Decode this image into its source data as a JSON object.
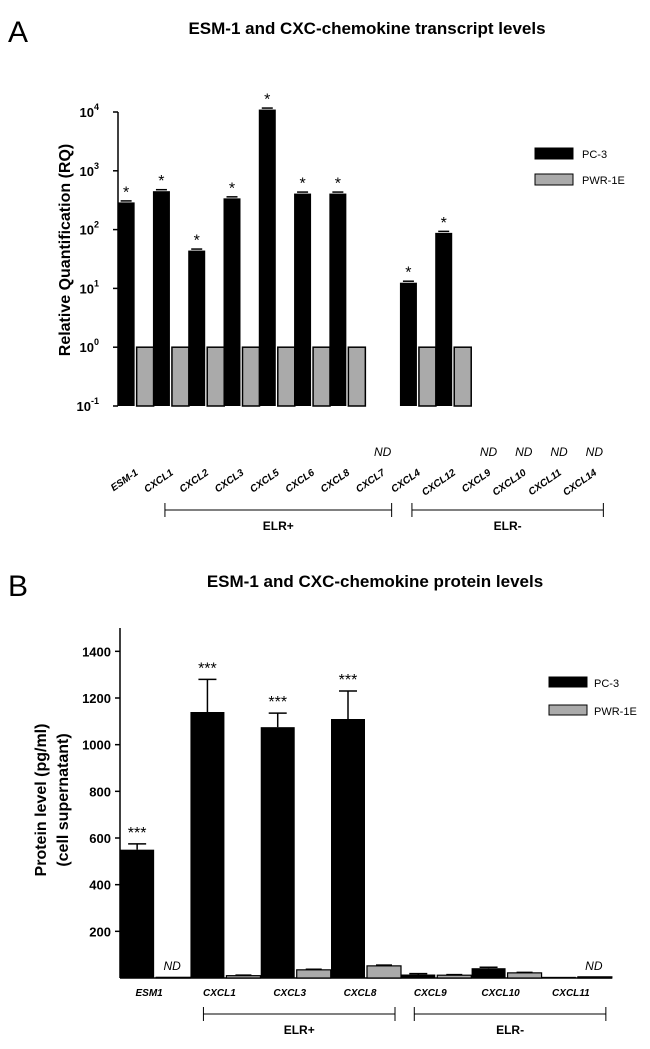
{
  "chart_data": [
    {
      "panel": "A",
      "type": "bar",
      "title": "ESM-1 and CXC-chemokine transcript levels",
      "ylabel": "Relative Quantification (RQ)",
      "yscale": "log",
      "ylim": [
        0.1,
        10000
      ],
      "y_ticks": [
        {
          "value": 0.1,
          "base": "10",
          "exp": "-1"
        },
        {
          "value": 1,
          "base": "10",
          "exp": "0"
        },
        {
          "value": 10,
          "base": "10",
          "exp": "1"
        },
        {
          "value": 100,
          "base": "10",
          "exp": "2"
        },
        {
          "value": 1000,
          "base": "10",
          "exp": "3"
        },
        {
          "value": 10000,
          "base": "10",
          "exp": "4"
        }
      ],
      "categories": [
        "ESM-1",
        "CXCL1",
        "CXCL2",
        "CXCL3",
        "CXCL5",
        "CXCL6",
        "CXCL8",
        "CXCL7",
        "CXCL4",
        "CXCL12",
        "CXCL9",
        "CXCL10",
        "CXCL11",
        "CXCL14"
      ],
      "series": [
        {
          "name": "PC-3",
          "color": "#000000",
          "values": [
            290,
            450,
            44,
            340,
            11000,
            410,
            410,
            null,
            12.5,
            88,
            null,
            null,
            null,
            null
          ]
        },
        {
          "name": "PWR-1E",
          "color": "#aaaaaa",
          "values": [
            1,
            1,
            1,
            1,
            1,
            1,
            1,
            null,
            1,
            1,
            null,
            null,
            null,
            null
          ]
        }
      ],
      "significance": [
        "*",
        "*",
        "*",
        "*",
        "*",
        "*",
        "*",
        "",
        "*",
        "*",
        "",
        "",
        "",
        ""
      ],
      "nd_label": "ND",
      "nd_categories": [
        "CXCL7",
        "CXCL9",
        "CXCL10",
        "CXCL11",
        "CXCL14"
      ],
      "groups": [
        {
          "label": "ELR+",
          "from": "CXCL1",
          "to": "CXCL7"
        },
        {
          "label": "ELR-",
          "from": "CXCL4",
          "to": "CXCL14"
        }
      ],
      "legend_position": "top-right"
    },
    {
      "panel": "B",
      "type": "bar",
      "title": "ESM-1 and  CXC-chemokine protein levels",
      "ylabel_line1": "Protein level  (pg/ml)",
      "ylabel_line2": "(cell supernatant)",
      "ylim": [
        0,
        1500
      ],
      "y_ticks": [
        200,
        400,
        600,
        800,
        1000,
        1200,
        1400
      ],
      "categories": [
        "ESM1",
        "CXCL1",
        "CXCL3",
        "CXCL8",
        "CXCL9",
        "CXCL10",
        "CXCL11"
      ],
      "series": [
        {
          "name": "PC-3",
          "color": "#000000",
          "values": [
            550,
            1140,
            1075,
            1110,
            15,
            42,
            5
          ],
          "errors": [
            25,
            140,
            60,
            120,
            4,
            4,
            0
          ]
        },
        {
          "name": "PWR-1E",
          "color": "#aaaaaa",
          "values": [
            3,
            10,
            35,
            52,
            12,
            22,
            5
          ],
          "errors": [
            0,
            3,
            3,
            4,
            3,
            3,
            0
          ]
        }
      ],
      "significance": [
        "***",
        "***",
        "***",
        "***",
        "",
        "",
        ""
      ],
      "nd_label": "ND",
      "nd_annotations": [
        {
          "category": "ESM1",
          "series": "PWR-1E"
        },
        {
          "category": "CXCL11",
          "series": "PWR-1E"
        }
      ],
      "groups": [
        {
          "label": "ELR+",
          "from": "CXCL1",
          "to": "CXCL8"
        },
        {
          "label": "ELR-",
          "from": "CXCL9",
          "to": "CXCL11"
        }
      ],
      "legend_position": "top-right"
    }
  ],
  "panels": {
    "a_letter": "A",
    "b_letter": "B"
  }
}
